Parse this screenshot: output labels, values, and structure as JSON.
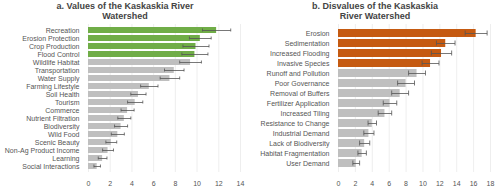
{
  "chart_data": [
    {
      "type": "bar",
      "orientation": "horizontal",
      "title": "a. Values of the Kaskaskia River Watershed",
      "categories": [
        "Recreation",
        "Erosion Protection",
        "Crop Production",
        "Flood Control",
        "Wildlife Habitat",
        "Transportation",
        "Water Supply",
        "Farming Lifestyle",
        "Soil Health",
        "Tourism",
        "Commerce",
        "Nutrient Filtration",
        "Biodiversity",
        "Wild Food",
        "Scenic Beauty",
        "Non-Ag Product Income",
        "Learning",
        "Social Interactions"
      ],
      "values": [
        11.8,
        10.3,
        9.9,
        9.8,
        9.4,
        7.9,
        7.5,
        5.6,
        4.6,
        4.3,
        3.6,
        3.3,
        3.0,
        2.7,
        2.1,
        1.8,
        1.3,
        0.8
      ],
      "errors": [
        1.3,
        1.0,
        1.2,
        1.2,
        1.0,
        0.9,
        0.9,
        0.8,
        0.7,
        0.7,
        0.6,
        0.6,
        0.6,
        0.6,
        0.5,
        0.5,
        0.4,
        0.3
      ],
      "colors": [
        "#70ad47",
        "#70ad47",
        "#70ad47",
        "#70ad47",
        "#bfbfbf",
        "#bfbfbf",
        "#bfbfbf",
        "#bfbfbf",
        "#bfbfbf",
        "#bfbfbf",
        "#bfbfbf",
        "#bfbfbf",
        "#bfbfbf",
        "#bfbfbf",
        "#bfbfbf",
        "#bfbfbf",
        "#bfbfbf",
        "#bfbfbf"
      ],
      "xlim": [
        0,
        14
      ],
      "xticks": [
        0,
        2,
        4,
        6,
        8,
        10,
        12,
        14
      ],
      "grid": true
    },
    {
      "type": "bar",
      "orientation": "horizontal",
      "title": "b. Disvalues of the Kaskaskia River Watershed",
      "categories": [
        "Erosion",
        "Sedimentation",
        "Increased Flooding",
        "Invasive Species",
        "Runoff and Pollution",
        "Poor Governance",
        "Removal of Buffers",
        "Fertilizer Application",
        "Increased Tiling",
        "Resistance to Change",
        "Industrial Demand",
        "Lack of Biodiversity",
        "Habitat Fragmentation",
        "User Demand"
      ],
      "values": [
        16.3,
        12.7,
        12.2,
        10.9,
        9.3,
        8.0,
        7.3,
        6.1,
        5.5,
        4.0,
        3.6,
        3.1,
        2.8,
        2.1
      ],
      "errors": [
        1.3,
        1.1,
        1.2,
        1.0,
        1.0,
        1.0,
        1.0,
        0.8,
        0.8,
        0.5,
        0.6,
        0.6,
        0.5,
        0.4
      ],
      "colors": [
        "#c55a11",
        "#c55a11",
        "#c55a11",
        "#c55a11",
        "#bfbfbf",
        "#bfbfbf",
        "#bfbfbf",
        "#bfbfbf",
        "#bfbfbf",
        "#bfbfbf",
        "#bfbfbf",
        "#bfbfbf",
        "#bfbfbf",
        "#bfbfbf"
      ],
      "xlim": [
        0,
        18
      ],
      "xticks": [
        0,
        2,
        4,
        6,
        8,
        10,
        12,
        14,
        16,
        18
      ],
      "grid": true
    }
  ]
}
